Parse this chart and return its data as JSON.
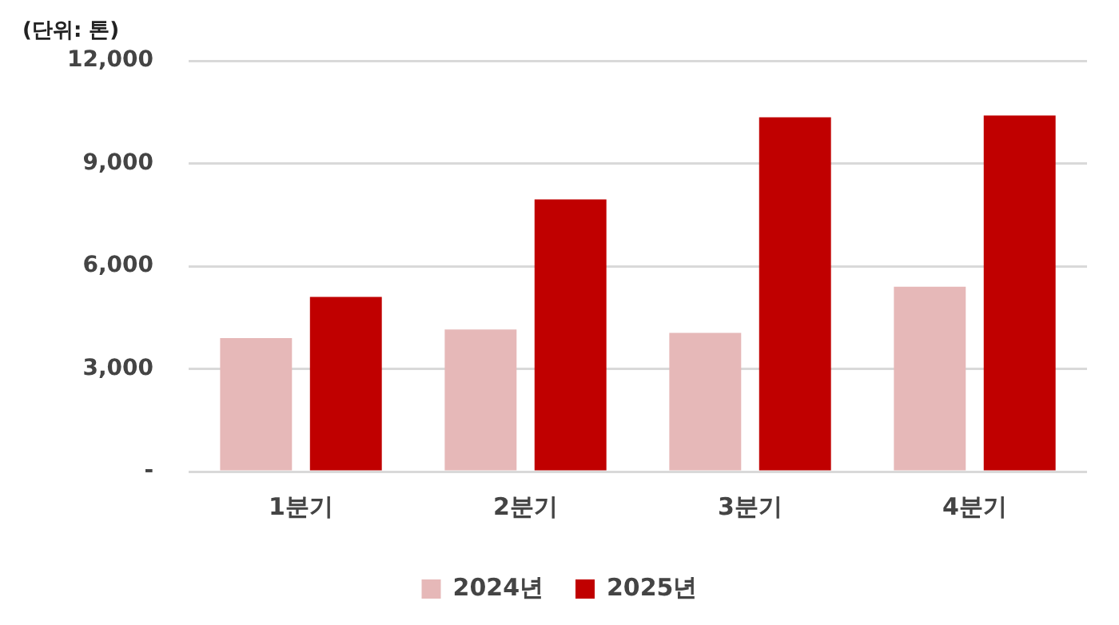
{
  "chart_data": {
    "type": "bar",
    "ylabel": "(단위: 톤)",
    "categories": [
      "1분기",
      "2분기",
      "3분기",
      "4분기"
    ],
    "series": [
      {
        "name": "2024년",
        "color": "#e6b8b8",
        "values": [
          3900,
          4150,
          4050,
          5400
        ]
      },
      {
        "name": "2025년",
        "color": "#c00000",
        "values": [
          5100,
          7950,
          10350,
          10400
        ]
      }
    ],
    "ylim": [
      0,
      12000
    ],
    "yticks": [
      {
        "value": 0,
        "label": "-"
      },
      {
        "value": 3000,
        "label": "3,000"
      },
      {
        "value": 6000,
        "label": "6,000"
      },
      {
        "value": 9000,
        "label": "9,000"
      },
      {
        "value": 12000,
        "label": "12,000"
      }
    ],
    "grid": "y",
    "legend": "bottom"
  }
}
